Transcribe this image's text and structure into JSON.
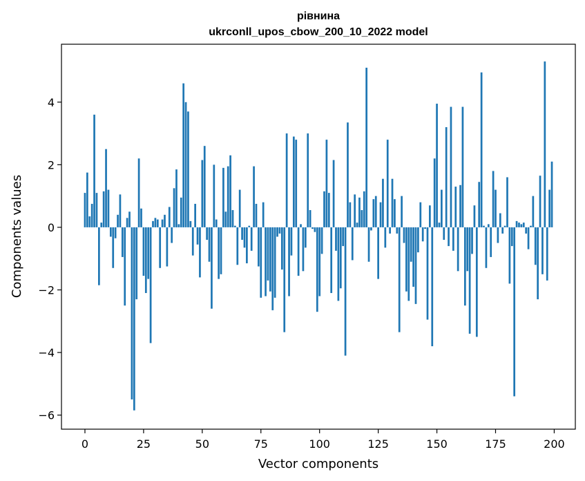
{
  "chart_data": {
    "type": "bar",
    "title_line1": "рівнина",
    "title_line2": "ukrconll_upos_cbow_200_10_2022 model",
    "xlabel": "Vector components",
    "ylabel": "Components values",
    "xlim": [
      -10,
      209
    ],
    "ylim": [
      -6.45,
      5.85
    ],
    "xticks": [
      0,
      25,
      50,
      75,
      100,
      125,
      150,
      175,
      200
    ],
    "xtick_labels": [
      "0",
      "25",
      "50",
      "75",
      "100",
      "125",
      "150",
      "175",
      "200"
    ],
    "yticks": [
      -6,
      -4,
      -2,
      0,
      2,
      4
    ],
    "ytick_labels": [
      "−6",
      "−4",
      "−2",
      "0",
      "2",
      "4"
    ],
    "grid": false,
    "bar_color": "#1f77b4",
    "values": [
      1.1,
      1.75,
      0.35,
      0.75,
      3.6,
      1.1,
      -1.85,
      0.15,
      1.15,
      2.5,
      1.2,
      -0.3,
      -1.3,
      -0.35,
      0.4,
      1.05,
      -0.95,
      -2.5,
      0.3,
      0.5,
      -5.5,
      -5.85,
      -2.3,
      2.2,
      0.6,
      -1.55,
      -2.1,
      -1.65,
      -3.7,
      0.2,
      0.3,
      0.25,
      -1.3,
      0.25,
      0.4,
      -1.25,
      0.65,
      -0.5,
      1.25,
      1.85,
      0.1,
      0.95,
      4.6,
      4.0,
      3.7,
      0.2,
      -0.9,
      0.75,
      -0.55,
      -1.6,
      2.15,
      2.6,
      -0.4,
      -1.1,
      -2.6,
      2.0,
      0.25,
      -1.65,
      -1.5,
      1.9,
      0.5,
      1.95,
      2.3,
      0.55,
      0.05,
      -1.2,
      1.2,
      -0.4,
      -0.65,
      -1.15,
      0.05,
      -0.75,
      1.95,
      0.75,
      -1.25,
      -2.25,
      0.8,
      -2.2,
      -1.7,
      -2.05,
      -2.65,
      -2.25,
      -0.3,
      -0.2,
      -1.35,
      -3.35,
      3.0,
      -2.2,
      -0.9,
      2.9,
      2.8,
      -1.55,
      0.1,
      -1.4,
      -0.65,
      3.0,
      0.55,
      -0.05,
      -0.15,
      -2.7,
      -2.2,
      -0.85,
      1.15,
      2.8,
      1.1,
      -2.1,
      2.15,
      -0.75,
      -2.35,
      -1.95,
      -0.6,
      -4.1,
      3.35,
      0.8,
      -1.05,
      1.05,
      0.15,
      0.95,
      0.55,
      1.15,
      5.1,
      -1.1,
      -0.1,
      0.9,
      1.0,
      -1.65,
      0.8,
      1.55,
      -0.65,
      2.8,
      -0.2,
      1.55,
      0.9,
      -0.2,
      -3.35,
      1.0,
      -0.5,
      -2.05,
      -2.35,
      -1.1,
      -1.9,
      -2.45,
      -0.8,
      0.8,
      -0.45,
      -0.05,
      -2.95,
      0.7,
      -3.8,
      2.2,
      3.95,
      0.15,
      1.2,
      -0.4,
      3.2,
      -0.6,
      3.85,
      -0.75,
      1.3,
      -1.4,
      1.35,
      3.85,
      -2.5,
      -1.4,
      -3.4,
      -0.85,
      0.7,
      -3.5,
      1.45,
      4.95,
      0.05,
      -1.3,
      0.1,
      -0.95,
      1.8,
      1.2,
      -0.5,
      0.45,
      -0.2,
      0.05,
      1.6,
      -1.8,
      -0.6,
      -5.4,
      0.2,
      0.15,
      0.1,
      0.15,
      -0.2,
      -0.7,
      0.05,
      1.0,
      -1.2,
      -2.3,
      1.65,
      -1.5,
      5.3,
      -1.7,
      1.2,
      2.1
    ]
  }
}
